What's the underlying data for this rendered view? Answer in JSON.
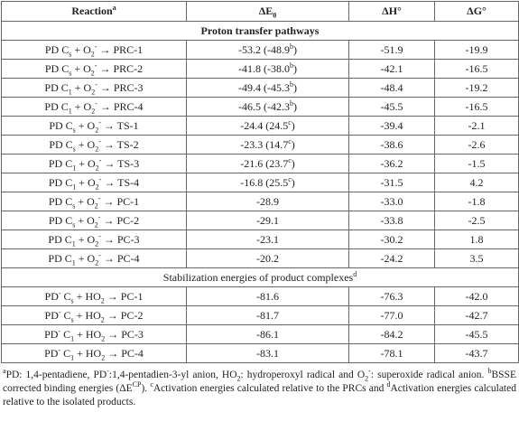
{
  "table": {
    "header": [
      [
        "Reaction",
        {
          "sup": "a"
        }
      ],
      [
        "ΔE",
        {
          "sub": "0"
        }
      ],
      [
        "ΔH°"
      ],
      [
        "ΔG°"
      ]
    ],
    "rows": [
      {
        "section": [
          "Proton transfer pathways"
        ]
      },
      {
        "cells": [
          [
            "PD C",
            {
              "sub": "s"
            },
            " + O",
            {
              "sub": "2"
            },
            {
              "sup": "-"
            },
            " → PRC-1"
          ],
          [
            "-53.2 (-48.9",
            {
              "sup": "b"
            },
            ")"
          ],
          [
            "-51.9"
          ],
          [
            "-19.9"
          ]
        ]
      },
      {
        "cells": [
          [
            "PD C",
            {
              "sub": "s"
            },
            " + O",
            {
              "sub": "2"
            },
            {
              "sup": "-"
            },
            " → PRC-2"
          ],
          [
            "-41.8 (-38.0",
            {
              "sup": "b"
            },
            ")"
          ],
          [
            "-42.1"
          ],
          [
            "-16.5"
          ]
        ]
      },
      {
        "cells": [
          [
            "PD C",
            {
              "sub": "1"
            },
            " + O",
            {
              "sub": "2"
            },
            {
              "sup": "-"
            },
            " → PRC-3"
          ],
          [
            "-49.4 (-45.3",
            {
              "sup": "b"
            },
            ")"
          ],
          [
            "-48.4"
          ],
          [
            "-19.2"
          ]
        ]
      },
      {
        "cells": [
          [
            "PD C",
            {
              "sub": "1"
            },
            " + O",
            {
              "sub": "2"
            },
            {
              "sup": "-"
            },
            " → PRC-4"
          ],
          [
            "-46.5 (-42.3",
            {
              "sup": "b"
            },
            ")"
          ],
          [
            "-45.5"
          ],
          [
            "-16.5"
          ]
        ]
      },
      {
        "cells": [
          [
            "PD C",
            {
              "sub": "s"
            },
            " + O",
            {
              "sub": "2"
            },
            {
              "sup": "-"
            },
            " → TS-1"
          ],
          [
            "-24.4 (24.5",
            {
              "sup": "c"
            },
            ")"
          ],
          [
            "-39.4"
          ],
          [
            "-2.1"
          ]
        ]
      },
      {
        "cells": [
          [
            "PD C",
            {
              "sub": "s"
            },
            " + O",
            {
              "sub": "2"
            },
            {
              "sup": "-"
            },
            " → TS-2"
          ],
          [
            "-23.3 (14.7",
            {
              "sup": "c"
            },
            ")"
          ],
          [
            "-38.6"
          ],
          [
            "-2.6"
          ]
        ]
      },
      {
        "cells": [
          [
            "PD C",
            {
              "sub": "1"
            },
            " + O",
            {
              "sub": "2"
            },
            {
              "sup": "-"
            },
            " → TS-3"
          ],
          [
            "-21.6 (23.7",
            {
              "sup": "c"
            },
            ")"
          ],
          [
            "-36.2"
          ],
          [
            "-1.5"
          ]
        ]
      },
      {
        "cells": [
          [
            "PD C",
            {
              "sub": "1"
            },
            " + O",
            {
              "sub": "2"
            },
            {
              "sup": "-"
            },
            " → TS-4"
          ],
          [
            "-16.8 (25.5",
            {
              "sup": "c"
            },
            ")"
          ],
          [
            "-31.5"
          ],
          [
            "4.2"
          ]
        ]
      },
      {
        "cells": [
          [
            "PD C",
            {
              "sub": "s"
            },
            " + O",
            {
              "sub": "2"
            },
            {
              "sup": "-"
            },
            " → PC-1"
          ],
          [
            "-28.9"
          ],
          [
            "-33.0"
          ],
          [
            "-1.8"
          ]
        ]
      },
      {
        "cells": [
          [
            "PD C",
            {
              "sub": "s"
            },
            " + O",
            {
              "sub": "2"
            },
            {
              "sup": "-"
            },
            " → PC-2"
          ],
          [
            "-29.1"
          ],
          [
            "-33.8"
          ],
          [
            "-2.5"
          ]
        ]
      },
      {
        "cells": [
          [
            "PD C",
            {
              "sub": "1"
            },
            " + O",
            {
              "sub": "2"
            },
            {
              "sup": "-"
            },
            " → PC-3"
          ],
          [
            "-23.1"
          ],
          [
            "-30.2"
          ],
          [
            "1.8"
          ]
        ]
      },
      {
        "cells": [
          [
            "PD C",
            {
              "sub": "1"
            },
            " + O",
            {
              "sub": "2"
            },
            {
              "sup": "-"
            },
            " → PC-4"
          ],
          [
            "-20.2"
          ],
          [
            "-24.2"
          ],
          [
            "3.5"
          ]
        ]
      },
      {
        "section": [
          "Stabilization energies of product complexes",
          {
            "sup": "d"
          }
        ]
      },
      {
        "cells": [
          [
            "PD",
            {
              "sup": "-"
            },
            " C",
            {
              "sub": "s"
            },
            " + HO",
            {
              "sub": "2"
            },
            " → PC-1"
          ],
          [
            "-81.6"
          ],
          [
            "-76.3"
          ],
          [
            "-42.0"
          ]
        ]
      },
      {
        "cells": [
          [
            "PD",
            {
              "sup": "-"
            },
            " C",
            {
              "sub": "s"
            },
            " + HO",
            {
              "sub": "2"
            },
            " → PC-2"
          ],
          [
            "-81.7"
          ],
          [
            "-77.0"
          ],
          [
            "-42.7"
          ]
        ]
      },
      {
        "cells": [
          [
            "PD",
            {
              "sup": "-"
            },
            " C",
            {
              "sub": "1"
            },
            " + HO",
            {
              "sub": "2"
            },
            " → PC-3"
          ],
          [
            "-86.1"
          ],
          [
            "-84.2"
          ],
          [
            "-45.5"
          ]
        ]
      },
      {
        "cells": [
          [
            "PD",
            {
              "sup": "-"
            },
            " C",
            {
              "sub": "1"
            },
            " + HO",
            {
              "sub": "2"
            },
            " → PC-4"
          ],
          [
            "-83.1"
          ],
          [
            "-78.1"
          ],
          [
            "-43.7"
          ]
        ]
      }
    ],
    "footnotes": [
      {
        "sup": "a"
      },
      "PD: 1,4-pentadiene, PD",
      {
        "sup": "-"
      },
      ":1,4-pentadien-3-yl anion, HO",
      {
        "sub": "2"
      },
      ": hydroperoxyl radical and O",
      {
        "sub": "2"
      },
      {
        "sup": "-"
      },
      ": superoxide radical anion. ",
      {
        "sup": "b"
      },
      "BSSE corrected binding energies (ΔE",
      {
        "sup": "CP"
      },
      "). ",
      {
        "sup": "c"
      },
      "Activation energies calculated relative to the PRCs and ",
      {
        "sup": "d"
      },
      "Activation energies calculated relative to the isolated products."
    ]
  }
}
